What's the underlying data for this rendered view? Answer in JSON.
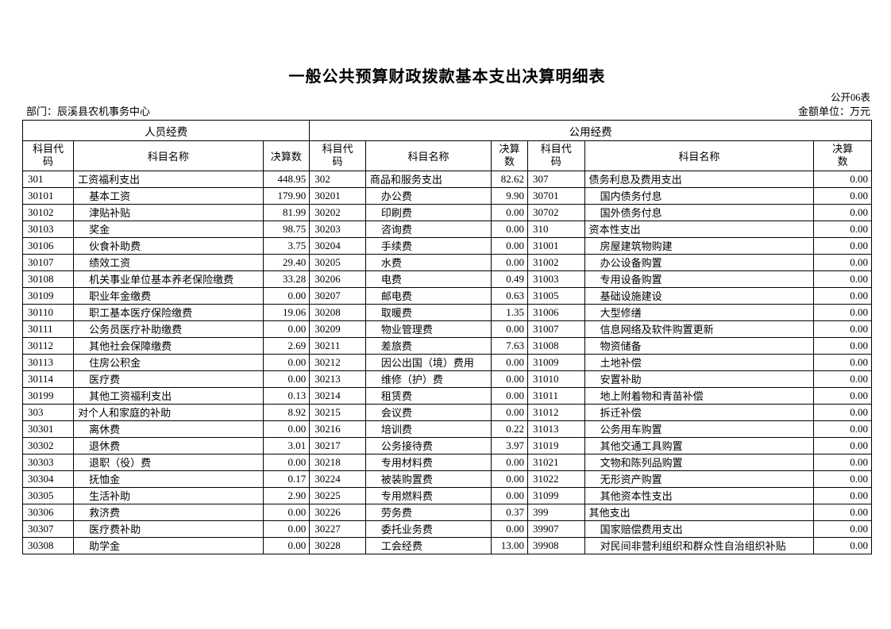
{
  "page": {
    "title": "一般公共预算财政拨款基本支出决算明细表",
    "table_code": "公开06表",
    "department": "部门：辰溪县农机事务中心",
    "unit": "金额单位：万元"
  },
  "table": {
    "group_headers": [
      "人员经费",
      "公用经费"
    ],
    "column_headers": [
      "科目代码",
      "科目名称",
      "决算数",
      "科目代码",
      "科目名称",
      "决算数",
      "科目代码",
      "科目名称",
      "决算数"
    ],
    "rows": [
      [
        {
          "code": "301",
          "name": "工资福利支出",
          "value": "448.95",
          "top": true
        },
        {
          "code": "302",
          "name": "商品和服务支出",
          "value": "82.62",
          "top": true
        },
        {
          "code": "307",
          "name": "债务利息及费用支出",
          "value": "0.00",
          "top": true
        }
      ],
      [
        {
          "code": "30101",
          "name": "基本工资",
          "value": "179.90"
        },
        {
          "code": "30201",
          "name": "办公费",
          "value": "9.90"
        },
        {
          "code": "30701",
          "name": "国内债务付息",
          "value": "0.00"
        }
      ],
      [
        {
          "code": "30102",
          "name": "津贴补贴",
          "value": "81.99"
        },
        {
          "code": "30202",
          "name": "印刷费",
          "value": "0.00"
        },
        {
          "code": "30702",
          "name": "国外债务付息",
          "value": "0.00"
        }
      ],
      [
        {
          "code": "30103",
          "name": "奖金",
          "value": "98.75"
        },
        {
          "code": "30203",
          "name": "咨询费",
          "value": "0.00"
        },
        {
          "code": "310",
          "name": "资本性支出",
          "value": "0.00",
          "top": true
        }
      ],
      [
        {
          "code": "30106",
          "name": "伙食补助费",
          "value": "3.75"
        },
        {
          "code": "30204",
          "name": "手续费",
          "value": "0.00"
        },
        {
          "code": "31001",
          "name": "房屋建筑物购建",
          "value": "0.00"
        }
      ],
      [
        {
          "code": "30107",
          "name": "绩效工资",
          "value": "29.40"
        },
        {
          "code": "30205",
          "name": "水费",
          "value": "0.00"
        },
        {
          "code": "31002",
          "name": "办公设备购置",
          "value": "0.00"
        }
      ],
      [
        {
          "code": "30108",
          "name": "机关事业单位基本养老保险缴费",
          "value": "33.28"
        },
        {
          "code": "30206",
          "name": "电费",
          "value": "0.49"
        },
        {
          "code": "31003",
          "name": "专用设备购置",
          "value": "0.00"
        }
      ],
      [
        {
          "code": "30109",
          "name": "职业年金缴费",
          "value": "0.00"
        },
        {
          "code": "30207",
          "name": "邮电费",
          "value": "0.63"
        },
        {
          "code": "31005",
          "name": "基础设施建设",
          "value": "0.00"
        }
      ],
      [
        {
          "code": "30110",
          "name": "职工基本医疗保险缴费",
          "value": "19.06"
        },
        {
          "code": "30208",
          "name": "取暖费",
          "value": "1.35"
        },
        {
          "code": "31006",
          "name": "大型修缮",
          "value": "0.00"
        }
      ],
      [
        {
          "code": "30111",
          "name": "公务员医疗补助缴费",
          "value": "0.00"
        },
        {
          "code": "30209",
          "name": "物业管理费",
          "value": "0.00"
        },
        {
          "code": "31007",
          "name": "信息网络及软件购置更新",
          "value": "0.00"
        }
      ],
      [
        {
          "code": "30112",
          "name": "其他社会保障缴费",
          "value": "2.69"
        },
        {
          "code": "30211",
          "name": "差旅费",
          "value": "7.63"
        },
        {
          "code": "31008",
          "name": "物资储备",
          "value": "0.00"
        }
      ],
      [
        {
          "code": "30113",
          "name": "住房公积金",
          "value": "0.00"
        },
        {
          "code": "30212",
          "name": "因公出国（境）费用",
          "value": "0.00"
        },
        {
          "code": "31009",
          "name": "土地补偿",
          "value": "0.00"
        }
      ],
      [
        {
          "code": "30114",
          "name": "医疗费",
          "value": "0.00"
        },
        {
          "code": "30213",
          "name": "维修（护）费",
          "value": "0.00"
        },
        {
          "code": "31010",
          "name": "安置补助",
          "value": "0.00"
        }
      ],
      [
        {
          "code": "30199",
          "name": "其他工资福利支出",
          "value": "0.13"
        },
        {
          "code": "30214",
          "name": "租赁费",
          "value": "0.00"
        },
        {
          "code": "31011",
          "name": "地上附着物和青苗补偿",
          "value": "0.00"
        }
      ],
      [
        {
          "code": "303",
          "name": "对个人和家庭的补助",
          "value": "8.92",
          "top": true
        },
        {
          "code": "30215",
          "name": "会议费",
          "value": "0.00"
        },
        {
          "code": "31012",
          "name": "拆迁补偿",
          "value": "0.00"
        }
      ],
      [
        {
          "code": "30301",
          "name": "离休费",
          "value": "0.00"
        },
        {
          "code": "30216",
          "name": "培训费",
          "value": "0.22"
        },
        {
          "code": "31013",
          "name": "公务用车购置",
          "value": "0.00"
        }
      ],
      [
        {
          "code": "30302",
          "name": "退休费",
          "value": "3.01"
        },
        {
          "code": "30217",
          "name": "公务接待费",
          "value": "3.97"
        },
        {
          "code": "31019",
          "name": "其他交通工具购置",
          "value": "0.00"
        }
      ],
      [
        {
          "code": "30303",
          "name": "退职（役）费",
          "value": "0.00"
        },
        {
          "code": "30218",
          "name": "专用材料费",
          "value": "0.00"
        },
        {
          "code": "31021",
          "name": "文物和陈列品购置",
          "value": "0.00"
        }
      ],
      [
        {
          "code": "30304",
          "name": "抚恤金",
          "value": "0.17"
        },
        {
          "code": "30224",
          "name": "被装购置费",
          "value": "0.00"
        },
        {
          "code": "31022",
          "name": "无形资产购置",
          "value": "0.00"
        }
      ],
      [
        {
          "code": "30305",
          "name": "生活补助",
          "value": "2.90"
        },
        {
          "code": "30225",
          "name": "专用燃料费",
          "value": "0.00"
        },
        {
          "code": "31099",
          "name": "其他资本性支出",
          "value": "0.00"
        }
      ],
      [
        {
          "code": "30306",
          "name": "救济费",
          "value": "0.00"
        },
        {
          "code": "30226",
          "name": "劳务费",
          "value": "0.37"
        },
        {
          "code": "399",
          "name": "其他支出",
          "value": "0.00",
          "top": true
        }
      ],
      [
        {
          "code": "30307",
          "name": "医疗费补助",
          "value": "0.00"
        },
        {
          "code": "30227",
          "name": "委托业务费",
          "value": "0.00"
        },
        {
          "code": "39907",
          "name": "国家赔偿费用支出",
          "value": "0.00"
        }
      ],
      [
        {
          "code": "30308",
          "name": "助学金",
          "value": "0.00"
        },
        {
          "code": "30228",
          "name": "工会经费",
          "value": "13.00"
        },
        {
          "code": "39908",
          "name": "对民间非营利组织和群众性自治组织补贴",
          "value": "0.00"
        }
      ]
    ]
  }
}
